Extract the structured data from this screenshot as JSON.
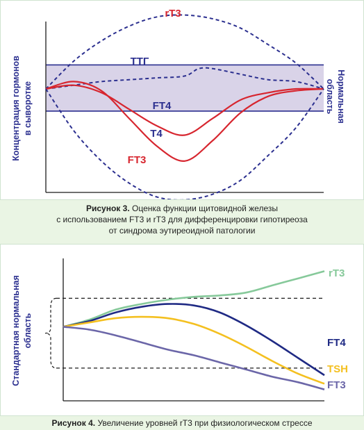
{
  "figure3": {
    "caption_label": "Рисунок 3.",
    "caption_line1": "Оценка функции щитовидной железы",
    "caption_line2": "с использованием FT3 и rT3 для дифференцировки гипотиреоза",
    "caption_line3": "от синдрома эутиреоидной патологии",
    "ylabel_line1": "Концентрация гормонов",
    "ylabel_line2": "в сыворотке",
    "right_label_line1": "Нормальная",
    "right_label_line2": "область",
    "colors": {
      "axis": "#1a1a1a",
      "band_fill": "#d9d3e8",
      "band_line": "#2b2f8f",
      "dashed": "#2b2f8f",
      "red": "#d7262f",
      "text_blue": "#2b2f8f"
    }
  },
  "figure4": {
    "caption_label": "Рисунок 4.",
    "caption_text": "Увеличение уровней rT3 при физиологическом стрессе",
    "ylabel_line1": "Стандартная нормальная",
    "ylabel_line2": "область",
    "colors": {
      "axis": "#1a1a1a",
      "rT3": "#86c99a",
      "FT4": "#1f2a84",
      "TSH": "#f4c020",
      "FT3": "#6b66a8",
      "dash": "#1a1a1a"
    }
  },
  "chart_data": [
    {
      "type": "line",
      "title": "",
      "xlabel": "",
      "ylabel": "Концентрация гормонов в сыворотке",
      "normal_band_label": "Нормальная область",
      "series": [
        {
          "name": "rT3",
          "style": "dashed",
          "color": "#2b2f8f",
          "label_color": "#d7262f",
          "x": [
            0,
            10,
            20,
            30,
            40,
            50,
            60,
            70,
            80,
            90,
            100
          ],
          "y": [
            0.56,
            0.71,
            0.82,
            0.9,
            0.95,
            0.96,
            0.94,
            0.89,
            0.8,
            0.7,
            0.56
          ]
        },
        {
          "name": "ТТГ",
          "style": "dashed",
          "color": "#2b2f8f",
          "label_color": "#2b2f8f",
          "x": [
            0,
            10,
            20,
            30,
            40,
            50,
            55,
            60,
            70,
            80,
            90,
            100
          ],
          "y": [
            0.56,
            0.58,
            0.6,
            0.61,
            0.62,
            0.63,
            0.67,
            0.67,
            0.64,
            0.61,
            0.6,
            0.56
          ]
        },
        {
          "name": "FT4",
          "style": "solid",
          "color": "#d7262f",
          "label_color": "#2b2f8f",
          "x": [
            0,
            10,
            20,
            30,
            40,
            50,
            60,
            70,
            80,
            90,
            100
          ],
          "y": [
            0.56,
            0.58,
            0.54,
            0.45,
            0.36,
            0.31,
            0.4,
            0.5,
            0.54,
            0.56,
            0.56
          ]
        },
        {
          "name": "T4",
          "style": "solid",
          "color": "#d7262f",
          "label_color": "#2b2f8f",
          "x": [
            0,
            10,
            20,
            30,
            40,
            50,
            60,
            70,
            80,
            90,
            100
          ],
          "y": [
            0.56,
            0.58,
            0.54,
            0.45,
            0.36,
            0.31,
            0.4,
            0.5,
            0.54,
            0.56,
            0.56
          ]
        },
        {
          "name": "FT3",
          "style": "solid",
          "color": "#d7262f",
          "label_color": "#d7262f",
          "x": [
            0,
            10,
            20,
            30,
            40,
            50,
            60,
            70,
            80,
            90,
            100
          ],
          "y": [
            0.56,
            0.6,
            0.55,
            0.4,
            0.25,
            0.17,
            0.28,
            0.43,
            0.52,
            0.55,
            0.56
          ]
        }
      ],
      "band": {
        "low": 0.44,
        "high": 0.69
      },
      "grid": false
    },
    {
      "type": "line",
      "title": "",
      "xlabel": "",
      "ylabel": "Стандартная нормальная область",
      "series": [
        {
          "name": "rT3",
          "x": [
            0,
            10,
            20,
            30,
            40,
            50,
            60,
            70,
            80,
            90,
            100
          ],
          "y": [
            0.52,
            0.57,
            0.64,
            0.68,
            0.71,
            0.73,
            0.74,
            0.76,
            0.81,
            0.86,
            0.91
          ]
        },
        {
          "name": "FT4",
          "x": [
            0,
            10,
            20,
            30,
            40,
            50,
            60,
            70,
            80,
            90,
            100
          ],
          "y": [
            0.52,
            0.56,
            0.62,
            0.66,
            0.68,
            0.67,
            0.62,
            0.53,
            0.42,
            0.3,
            0.18
          ]
        },
        {
          "name": "TSH",
          "x": [
            0,
            10,
            20,
            30,
            40,
            50,
            60,
            70,
            80,
            90,
            100
          ],
          "y": [
            0.52,
            0.55,
            0.58,
            0.59,
            0.58,
            0.54,
            0.47,
            0.38,
            0.28,
            0.19,
            0.12
          ]
        },
        {
          "name": "FT3",
          "x": [
            0,
            10,
            20,
            30,
            40,
            50,
            60,
            70,
            80,
            90,
            100
          ],
          "y": [
            0.52,
            0.5,
            0.46,
            0.41,
            0.36,
            0.32,
            0.27,
            0.22,
            0.17,
            0.13,
            0.08
          ]
        }
      ],
      "reference_lines": {
        "upper": 0.72,
        "lower": 0.23
      },
      "grid": false
    }
  ]
}
